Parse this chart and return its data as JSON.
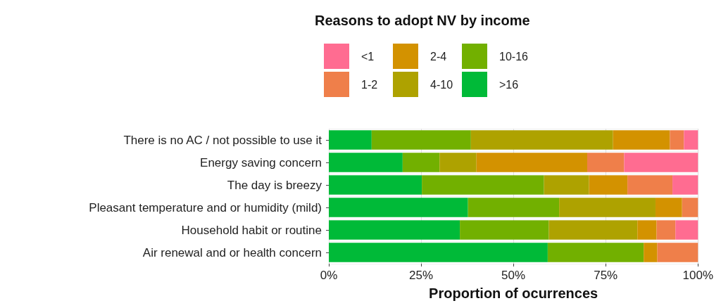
{
  "chart_data": {
    "type": "bar",
    "orientation": "horizontal",
    "stacked": true,
    "title": "Reasons to adopt NV by income",
    "xlabel": "Proportion of ocurrences",
    "categories": [
      "There is no AC / not possible to use it",
      "Energy saving concern",
      "The day is breezy",
      "Pleasant temperature and or humidity (mild)",
      "Household habit or routine",
      "Air renewal and or health concern"
    ],
    "series": [
      {
        "name": ">16",
        "color": "#00ba38",
        "values": [
          11.6,
          20,
          25.2,
          37.7,
          35.5,
          59.3
        ]
      },
      {
        "name": "10-16",
        "color": "#72b000",
        "values": [
          26.9,
          10,
          33.1,
          24.7,
          24.1,
          26.0
        ]
      },
      {
        "name": "4-10",
        "color": "#aea200",
        "values": [
          38.5,
          10,
          12.2,
          26.1,
          24.0,
          0
        ]
      },
      {
        "name": "2-4",
        "color": "#d39200",
        "values": [
          15.4,
          30,
          10.4,
          7.2,
          5.2,
          3.7
        ]
      },
      {
        "name": "1-2",
        "color": "#ef7f4a",
        "values": [
          3.8,
          10,
          12.2,
          4.3,
          5.1,
          11.0
        ]
      },
      {
        "name": "<1",
        "color": "#ff6c91",
        "values": [
          3.8,
          20,
          6.9,
          0,
          6.1,
          0
        ]
      }
    ],
    "xlim": [
      0,
      100
    ],
    "xticks": [
      {
        "value": 0,
        "label": "0%"
      },
      {
        "value": 25,
        "label": "25%"
      },
      {
        "value": 50,
        "label": "50%"
      },
      {
        "value": 75,
        "label": "75%"
      },
      {
        "value": 100,
        "label": "100%"
      }
    ],
    "grid": true,
    "legend": "top"
  }
}
